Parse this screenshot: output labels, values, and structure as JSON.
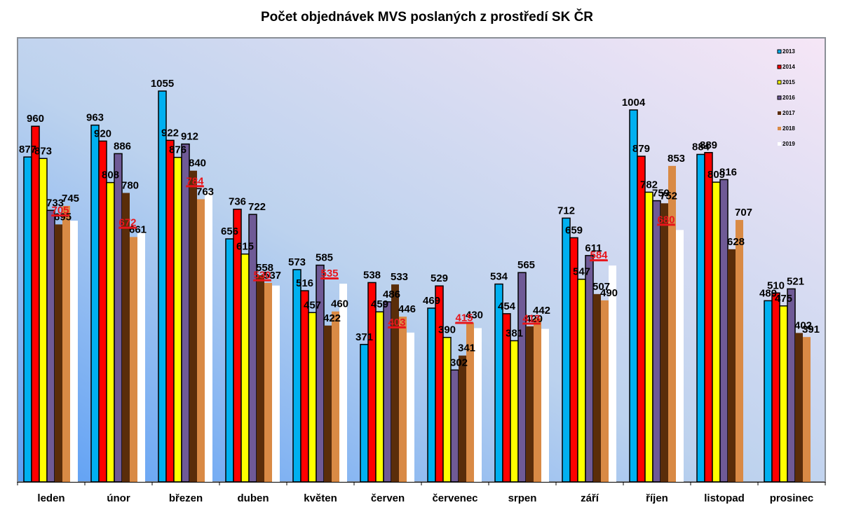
{
  "chart_data": {
    "type": "bar",
    "title": "Počet objednávek MVS poslaných z prostředí SK ČR",
    "xlabel": "",
    "ylabel": "",
    "ylim": [
      0,
      1055
    ],
    "grid": false,
    "legend_position": "top-right",
    "categories": [
      "leden",
      "únor",
      "březen",
      "duben",
      "květen",
      "červen",
      "červenec",
      "srpen",
      "září",
      "říjen",
      "listopad",
      "prosinec"
    ],
    "series": [
      {
        "name": "2013",
        "color": "#00B0F0",
        "values": [
          877,
          963,
          1055,
          656,
          573,
          371,
          469,
          534,
          712,
          1004,
          884,
          489
        ]
      },
      {
        "name": "2014",
        "color": "#FF0000",
        "values": [
          960,
          920,
          922,
          736,
          516,
          538,
          529,
          454,
          659,
          879,
          889,
          510
        ]
      },
      {
        "name": "2015",
        "color": "#FFFF00",
        "values": [
          873,
          808,
          876,
          615,
          457,
          459,
          390,
          381,
          547,
          782,
          809,
          475
        ]
      },
      {
        "name": "2016",
        "color": "#6F5A96",
        "values": [
          733,
          886,
          912,
          722,
          585,
          486,
          302,
          565,
          611,
          759,
          816,
          521
        ]
      },
      {
        "name": "2017",
        "color": "#5A2D0A",
        "values": [
          695,
          780,
          840,
          558,
          422,
          533,
          341,
          420,
          507,
          752,
          628,
          402
        ]
      },
      {
        "name": "2018",
        "color": "#D98A45",
        "values": [
          745,
          661,
          763,
          537,
          460,
          446,
          430,
          442,
          490,
          853,
          707,
          391
        ]
      },
      {
        "name": "2019",
        "color": "#FFFFFF",
        "values": [
          705,
          672,
          784,
          530,
          535,
          403,
          415,
          413,
          584,
          680,
          null,
          null
        ],
        "label_style": "red-underlined"
      }
    ]
  }
}
